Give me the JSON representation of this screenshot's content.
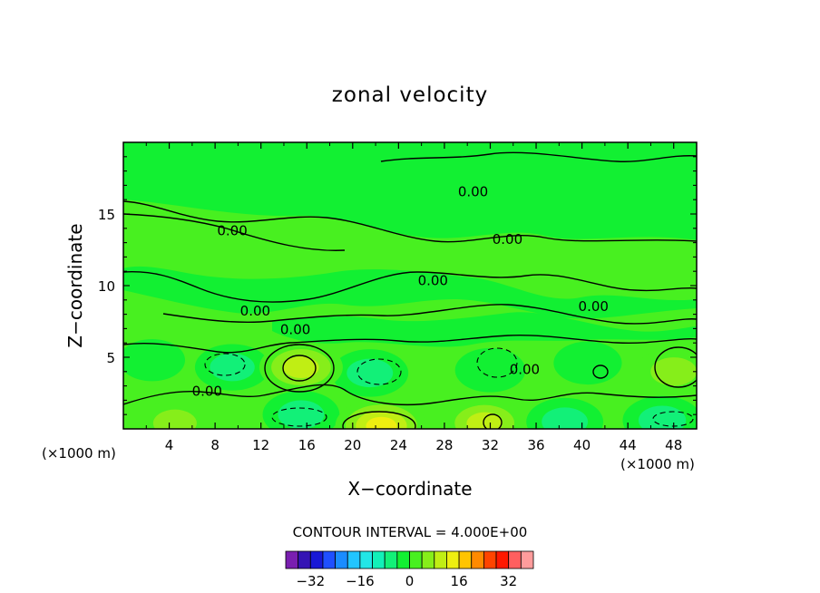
{
  "chart_data": {
    "type": "heatmap",
    "title": "zonal velocity",
    "xlabel": "X−coordinate",
    "ylabel": "Z−coordinate",
    "x_unit_left": "(×1000 m)",
    "x_unit_right": "(×1000 m)",
    "xlim": [
      0,
      50
    ],
    "ylim": [
      0,
      20
    ],
    "x_ticks": [
      4,
      8,
      12,
      16,
      20,
      24,
      28,
      32,
      36,
      40,
      44,
      48
    ],
    "y_ticks": [
      5,
      10,
      15
    ],
    "contour_interval_label": "CONTOUR INTERVAL = 4.000E+00",
    "contour_labels": [
      {
        "text": "0.00",
        "x": 30.5,
        "y": 16.6
      },
      {
        "text": "0.00",
        "x": 9.5,
        "y": 13.9
      },
      {
        "text": "0.00",
        "x": 33.5,
        "y": 13.3
      },
      {
        "text": "0.00",
        "x": 27.0,
        "y": 10.4
      },
      {
        "text": "0.00",
        "x": 11.5,
        "y": 8.3
      },
      {
        "text": "0.00",
        "x": 41.0,
        "y": 8.6
      },
      {
        "text": "0.00",
        "x": 15.0,
        "y": 7.0
      },
      {
        "text": "0.00",
        "x": 35.0,
        "y": 4.2
      },
      {
        "text": "0.00",
        "x": 7.3,
        "y": 2.7
      }
    ],
    "colorbar": {
      "levels": [
        -36,
        -32,
        -28,
        -24,
        -20,
        -16,
        -12,
        -8,
        -4,
        0,
        4,
        8,
        12,
        16,
        20,
        24,
        28,
        32,
        36
      ],
      "colors": [
        "#7a1fb0",
        "#3514b4",
        "#1818d6",
        "#1f4fff",
        "#1a8cff",
        "#22c5ff",
        "#22e6e6",
        "#12f0b8",
        "#12f078",
        "#12f032",
        "#48f020",
        "#86ee1a",
        "#c0ee14",
        "#eeee10",
        "#ffc400",
        "#ff8a00",
        "#ff4400",
        "#ff1800",
        "#ff5f5f",
        "#ff9c9c"
      ],
      "tick_labels": [
        "−32",
        "−16",
        "0",
        "16",
        "32"
      ],
      "tick_values": [
        -32,
        -16,
        0,
        16,
        32
      ]
    },
    "features": [
      {
        "x": 9.5,
        "y": 4.3,
        "value": -6
      },
      {
        "x": 21.5,
        "y": 3.9,
        "value": -7
      },
      {
        "x": 32.0,
        "y": 4.1,
        "value": -4
      },
      {
        "x": 40.5,
        "y": 4.6,
        "value": -3
      },
      {
        "x": 15.5,
        "y": 4.3,
        "value": 10
      },
      {
        "x": 48.0,
        "y": 4.0,
        "value": 7
      },
      {
        "x": 2.5,
        "y": 4.8,
        "value": -2
      },
      {
        "x": 15.5,
        "y": 1.0,
        "value": -7
      },
      {
        "x": 22.5,
        "y": 0.2,
        "value": 14
      },
      {
        "x": 31.5,
        "y": 0.4,
        "value": 10
      },
      {
        "x": 38.5,
        "y": 0.5,
        "value": -7
      },
      {
        "x": 47.0,
        "y": 0.6,
        "value": -8
      },
      {
        "x": 4.5,
        "y": 0.4,
        "value": 5
      }
    ]
  }
}
